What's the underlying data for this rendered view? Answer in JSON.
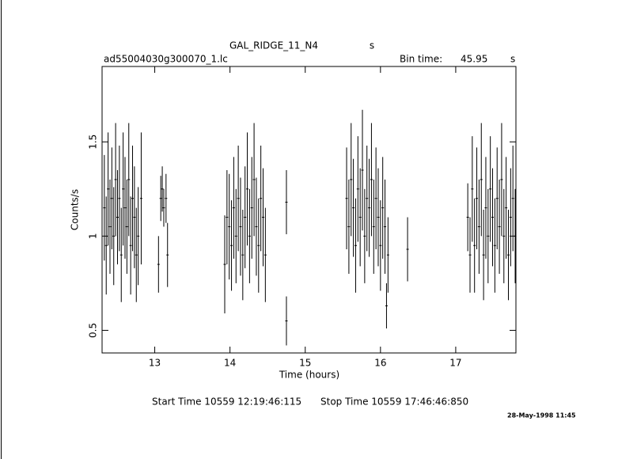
{
  "chart_data": {
    "type": "errorbar",
    "title": "GAL_RIDGE_11_N4",
    "title_unit": "s",
    "file": "ad55004030g300070_1.lc",
    "bin_time_label": "Bin time:",
    "bin_time": "45.95",
    "bin_time_unit": "s",
    "xlabel": "Time (hours)",
    "ylabel": "Counts/s",
    "start_time": "Start Time 10559 12:19:46:115",
    "stop_time": "Stop Time 10559 17:46:46:850",
    "date": "28-May-1998 11:45",
    "xlim": [
      12.3,
      17.8
    ],
    "ylim": [
      0.38,
      1.9
    ],
    "xticks": [
      13,
      14,
      15,
      16,
      17
    ],
    "yticks": [
      0.5,
      1,
      1.5
    ],
    "color": "#000000",
    "x": [
      12.33,
      12.355,
      12.38,
      12.405,
      12.43,
      12.455,
      12.48,
      12.505,
      12.53,
      12.555,
      12.58,
      12.605,
      12.63,
      12.655,
      12.68,
      12.705,
      12.73,
      12.755,
      12.78,
      12.82,
      13.05,
      13.08,
      13.1,
      13.12,
      13.15,
      13.17,
      13.93,
      13.96,
      13.99,
      14.02,
      14.05,
      14.08,
      14.11,
      14.14,
      14.17,
      14.2,
      14.23,
      14.26,
      14.29,
      14.32,
      14.35,
      14.38,
      14.41,
      14.44,
      14.47,
      14.75,
      14.75,
      15.55,
      15.58,
      15.61,
      15.64,
      15.67,
      15.7,
      15.73,
      15.76,
      15.79,
      15.82,
      15.85,
      15.88,
      15.91,
      15.94,
      15.97,
      16.0,
      16.03,
      16.06,
      16.08,
      16.1,
      16.36,
      17.16,
      17.19,
      17.22,
      17.25,
      17.28,
      17.31,
      17.34,
      17.37,
      17.4,
      17.43,
      17.46,
      17.49,
      17.52,
      17.55,
      17.58,
      17.61,
      17.64,
      17.67,
      17.7,
      17.73,
      17.76,
      17.79
    ],
    "values": [
      1.15,
      0.95,
      1.25,
      1.05,
      1.2,
      1.0,
      1.3,
      1.1,
      1.2,
      0.9,
      1.25,
      1.15,
      1.05,
      1.3,
      0.95,
      1.2,
      1.1,
      0.9,
      1.0,
      1.2,
      0.85,
      1.2,
      1.25,
      1.15,
      1.2,
      0.9,
      0.85,
      1.1,
      1.05,
      0.95,
      1.15,
      1.0,
      1.2,
      1.05,
      0.9,
      1.1,
      1.25,
      1.0,
      1.15,
      1.3,
      1.05,
      0.95,
      1.2,
      1.1,
      0.9,
      1.18,
      0.55,
      1.2,
      1.05,
      1.3,
      1.15,
      0.95,
      1.25,
      1.1,
      1.35,
      1.0,
      1.2,
      1.15,
      1.3,
      1.05,
      1.2,
      1.1,
      0.95,
      1.15,
      1.05,
      0.63,
      0.9,
      0.93,
      1.1,
      0.9,
      1.25,
      0.95,
      1.2,
      1.05,
      1.3,
      0.9,
      1.15,
      1.0,
      1.25,
      1.1,
      0.95,
      1.2,
      1.05,
      1.3,
      1.0,
      1.15,
      0.9,
      1.1,
      1.2,
      1.0
    ],
    "errors": [
      0.28,
      0.26,
      0.3,
      0.25,
      0.27,
      0.26,
      0.3,
      0.25,
      0.28,
      0.25,
      0.3,
      0.27,
      0.25,
      0.3,
      0.26,
      0.28,
      0.27,
      0.25,
      0.26,
      0.35,
      0.15,
      0.12,
      0.12,
      0.1,
      0.13,
      0.17,
      0.26,
      0.25,
      0.28,
      0.24,
      0.27,
      0.25,
      0.28,
      0.26,
      0.24,
      0.27,
      0.3,
      0.25,
      0.27,
      0.3,
      0.26,
      0.25,
      0.28,
      0.26,
      0.25,
      0.17,
      0.13,
      0.27,
      0.25,
      0.3,
      0.26,
      0.25,
      0.28,
      0.26,
      0.32,
      0.25,
      0.28,
      0.26,
      0.3,
      0.25,
      0.27,
      0.26,
      0.24,
      0.27,
      0.25,
      0.12,
      0.2,
      0.17,
      0.18,
      0.2,
      0.28,
      0.25,
      0.27,
      0.25,
      0.3,
      0.24,
      0.27,
      0.25,
      0.28,
      0.26,
      0.25,
      0.27,
      0.25,
      0.3,
      0.25,
      0.27,
      0.24,
      0.26,
      0.28,
      0.25
    ]
  }
}
